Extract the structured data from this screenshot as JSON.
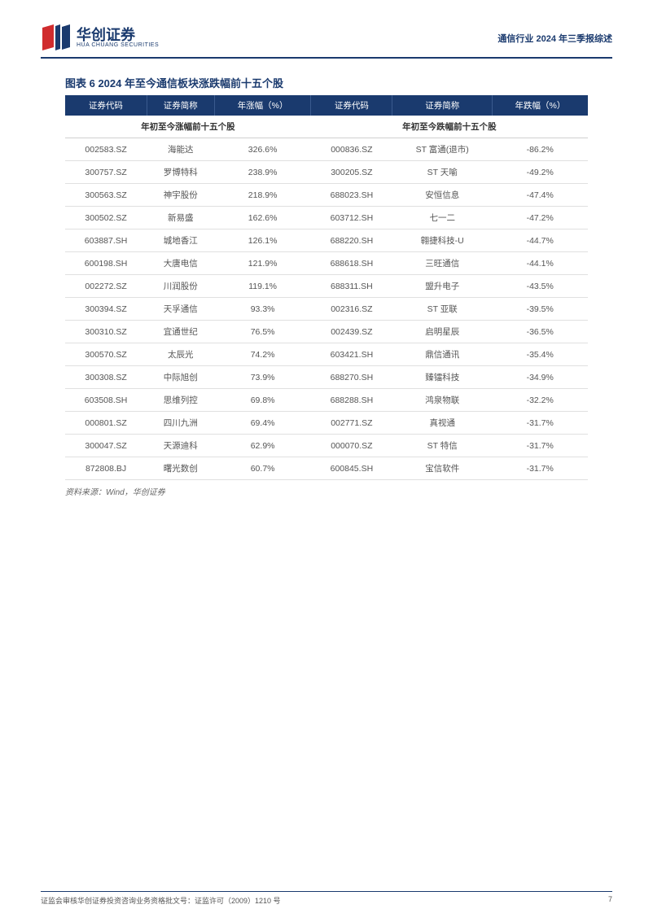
{
  "header": {
    "brand_cn": "华创证券",
    "brand_en": "HUA CHUANG SECURITIES",
    "report_title": "通信行业 2024 年三季报综述",
    "logo_color_red": "#d02c2e",
    "logo_color_blue": "#1a3a6e"
  },
  "table": {
    "caption": "图表 6  2024 年至今通信板块涨跌幅前十五个股",
    "header_bg": "#1a3a6e",
    "header_fg": "#ffffff",
    "columns": [
      "证券代码",
      "证券简称",
      "年涨幅（%）",
      "证券代码",
      "证券简称",
      "年跌幅（%）"
    ],
    "sub_left": "年初至今涨幅前十五个股",
    "sub_right": "年初至今跌幅前十五个股",
    "rows": [
      [
        "002583.SZ",
        "海能达",
        "326.6%",
        "000836.SZ",
        "ST 富通(退市)",
        "-86.2%"
      ],
      [
        "300757.SZ",
        "罗博特科",
        "238.9%",
        "300205.SZ",
        "ST 天喻",
        "-49.2%"
      ],
      [
        "300563.SZ",
        "神宇股份",
        "218.9%",
        "688023.SH",
        "安恒信息",
        "-47.4%"
      ],
      [
        "300502.SZ",
        "新易盛",
        "162.6%",
        "603712.SH",
        "七一二",
        "-47.2%"
      ],
      [
        "603887.SH",
        "城地香江",
        "126.1%",
        "688220.SH",
        "翱捷科技-U",
        "-44.7%"
      ],
      [
        "600198.SH",
        "大唐电信",
        "121.9%",
        "688618.SH",
        "三旺通信",
        "-44.1%"
      ],
      [
        "002272.SZ",
        "川润股份",
        "119.1%",
        "688311.SH",
        "盟升电子",
        "-43.5%"
      ],
      [
        "300394.SZ",
        "天孚通信",
        "93.3%",
        "002316.SZ",
        "ST 亚联",
        "-39.5%"
      ],
      [
        "300310.SZ",
        "宜通世纪",
        "76.5%",
        "002439.SZ",
        "启明星辰",
        "-36.5%"
      ],
      [
        "300570.SZ",
        "太辰光",
        "74.2%",
        "603421.SH",
        "鼎信通讯",
        "-35.4%"
      ],
      [
        "300308.SZ",
        "中际旭创",
        "73.9%",
        "688270.SH",
        "臻镭科技",
        "-34.9%"
      ],
      [
        "603508.SH",
        "思维列控",
        "69.8%",
        "688288.SH",
        "鸿泉物联",
        "-32.2%"
      ],
      [
        "000801.SZ",
        "四川九洲",
        "69.4%",
        "002771.SZ",
        "真视通",
        "-31.7%"
      ],
      [
        "300047.SZ",
        "天源迪科",
        "62.9%",
        "000070.SZ",
        "ST 特信",
        "-31.7%"
      ],
      [
        "872808.BJ",
        "曙光数创",
        "60.7%",
        "600845.SH",
        "宝信软件",
        "-31.7%"
      ]
    ],
    "source": "资料来源：Wind，华创证券"
  },
  "footer": {
    "left": "证监会审核华创证券投资咨询业务资格批文号：证监许可（2009）1210 号",
    "page": "7"
  }
}
